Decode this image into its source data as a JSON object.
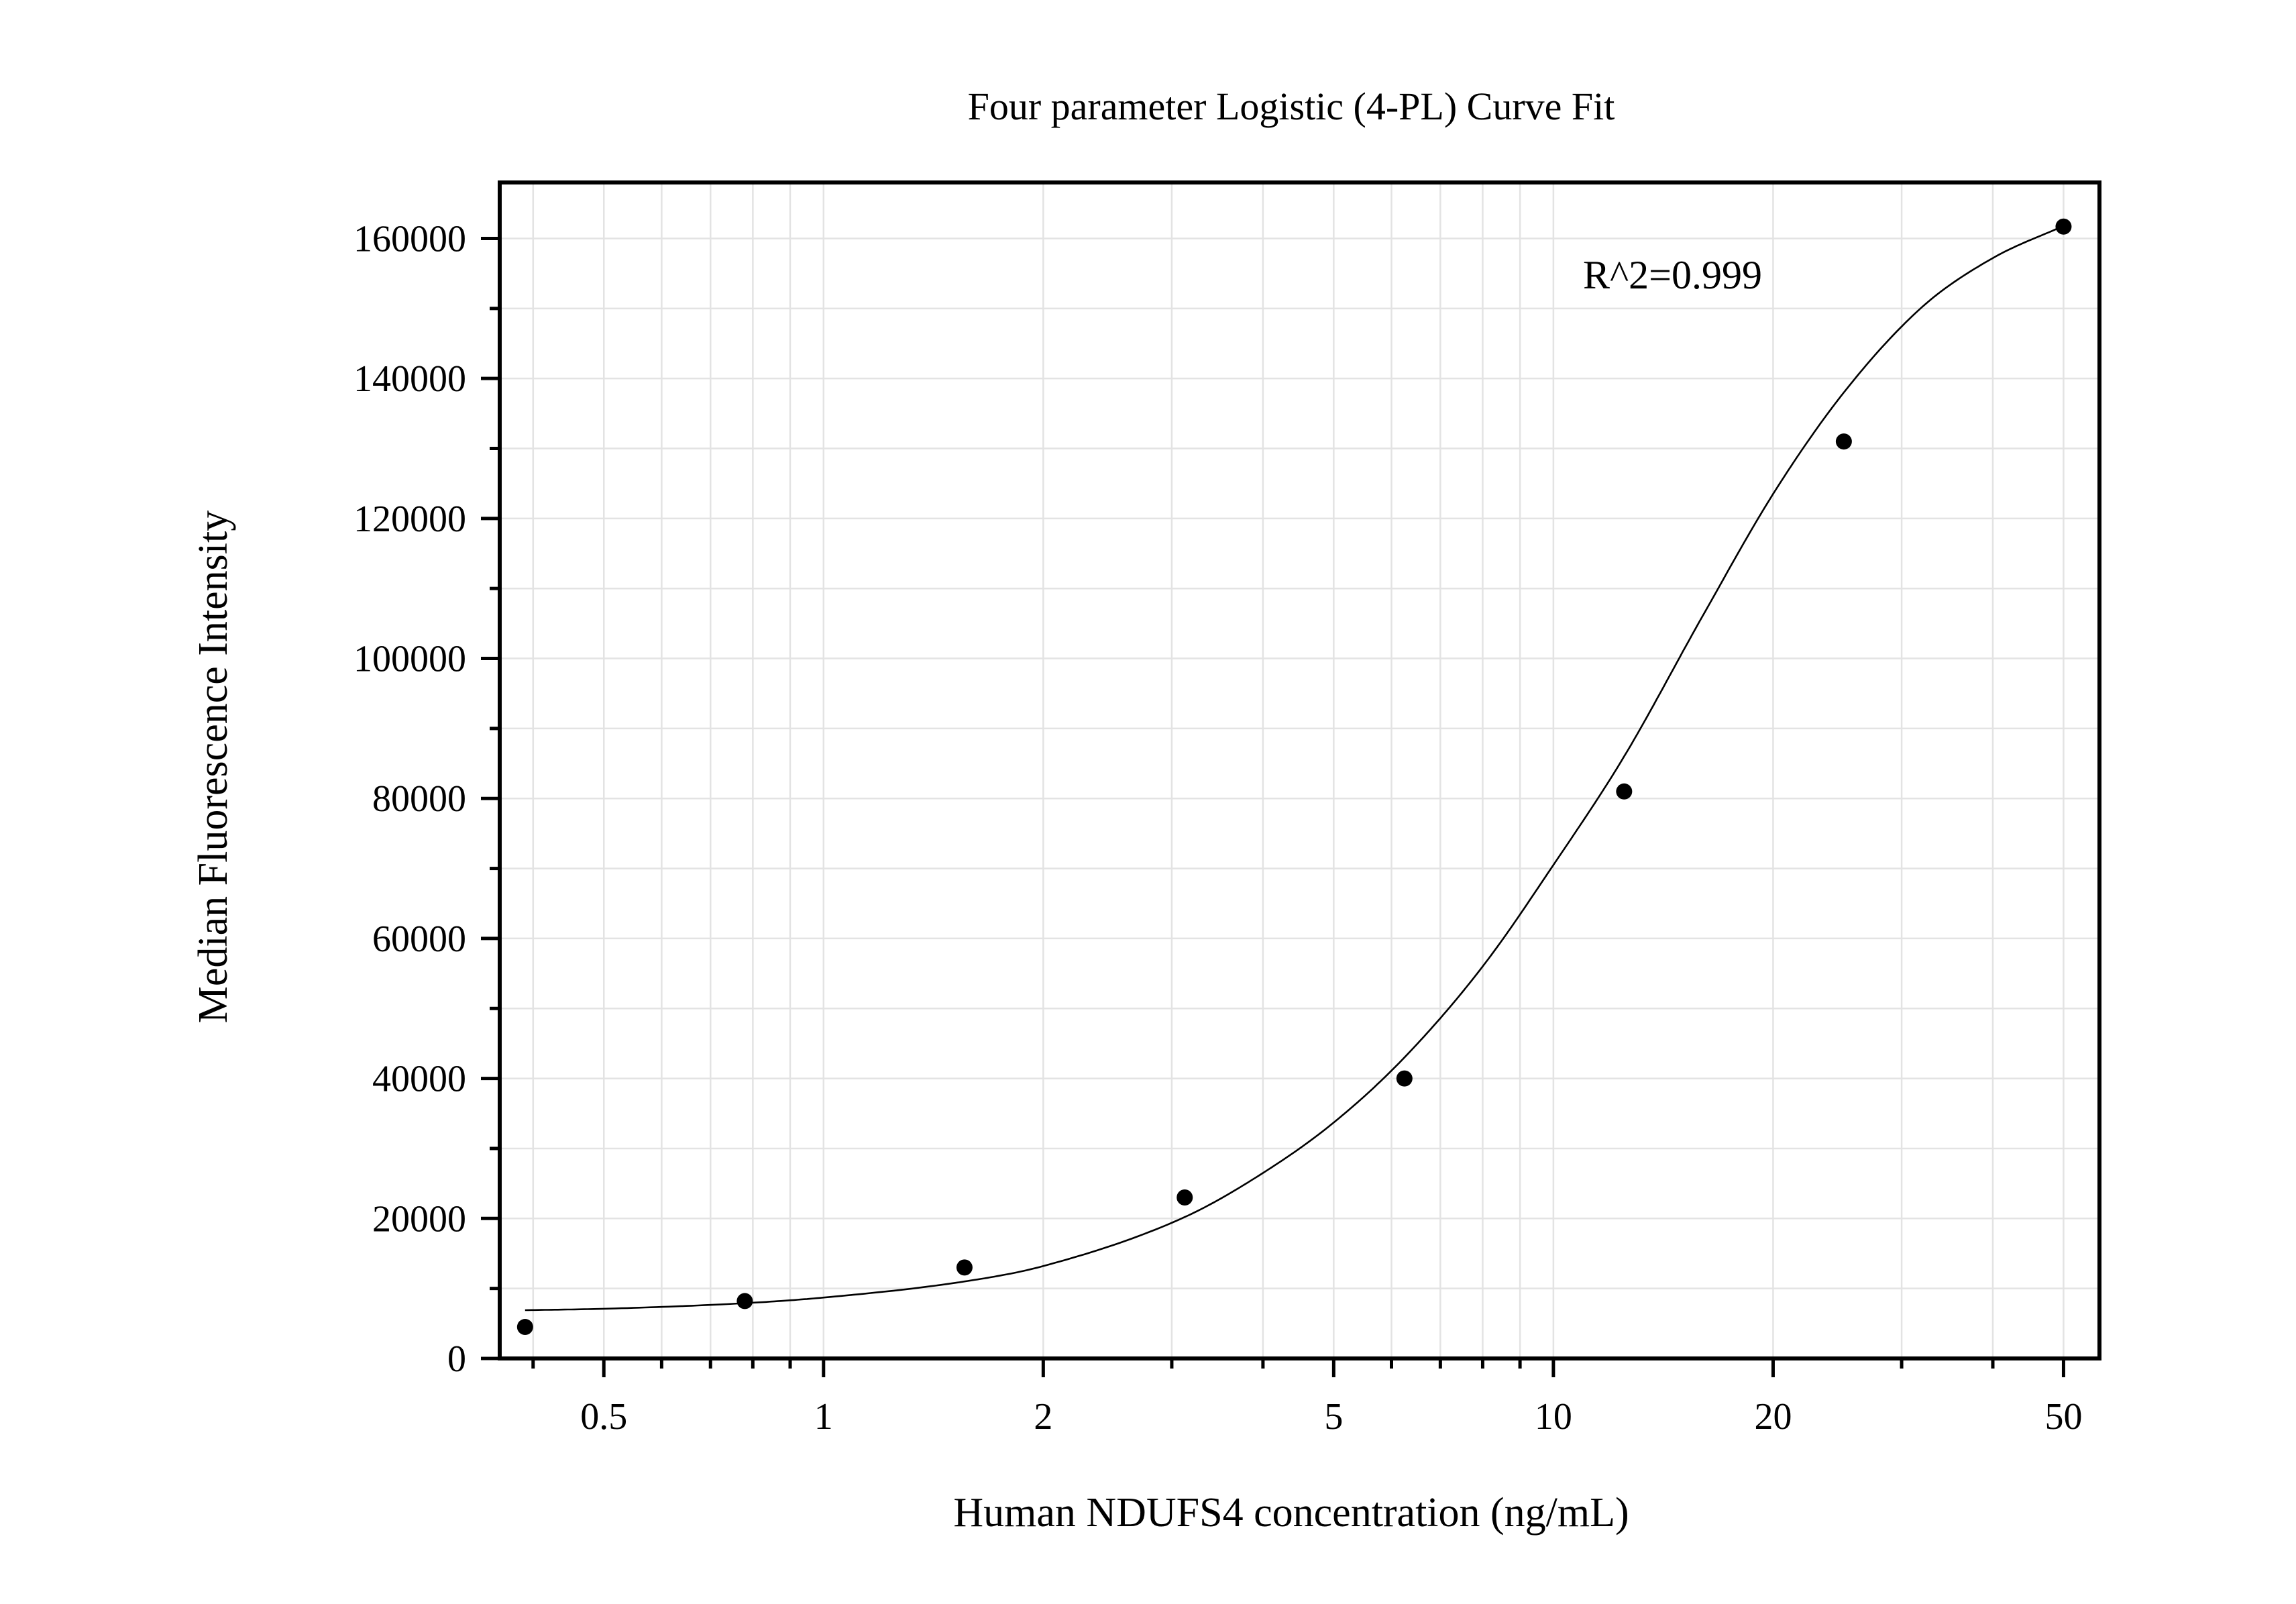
{
  "chart_data": {
    "type": "scatter",
    "title": "Four parameter Logistic (4-PL) Curve Fit",
    "xlabel": "Human NDUFS4 concentration (ng/mL)",
    "ylabel": "Median Fluorescence Intensity",
    "x_scale": "log",
    "xlim": [
      0.36,
      56
    ],
    "ylim": [
      0,
      168000
    ],
    "x_ticks": [
      0.5,
      1,
      2,
      5,
      10,
      20,
      50
    ],
    "x_tick_labels": [
      "0.5",
      "1",
      "2",
      "5",
      "10",
      "20",
      "50"
    ],
    "y_ticks": [
      0,
      20000,
      40000,
      60000,
      80000,
      100000,
      120000,
      140000,
      160000
    ],
    "y_tick_labels": [
      "0",
      "20000",
      "40000",
      "60000",
      "80000",
      "100000",
      "120000",
      "140000",
      "160000"
    ],
    "grid": true,
    "annotation": "R^2=0.999",
    "series": [
      {
        "x": [
          0.39,
          0.78,
          1.56,
          3.125,
          6.25,
          12.5,
          25,
          50
        ],
        "y": [
          4500,
          8200,
          13000,
          23000,
          40000,
          81000,
          131000,
          161700
        ]
      }
    ],
    "fit": {
      "model": "4PL",
      "x": [
        0.39,
        0.5,
        0.78,
        1,
        1.56,
        2,
        3.125,
        4,
        5,
        6.25,
        8,
        10,
        12.5,
        16,
        20,
        25,
        32,
        40,
        50
      ],
      "y": [
        6900,
        7100,
        7900,
        8700,
        11000,
        13200,
        20200,
        26500,
        33700,
        43000,
        56000,
        70500,
        86000,
        106000,
        123500,
        138000,
        150200,
        157200,
        161800
      ]
    }
  }
}
